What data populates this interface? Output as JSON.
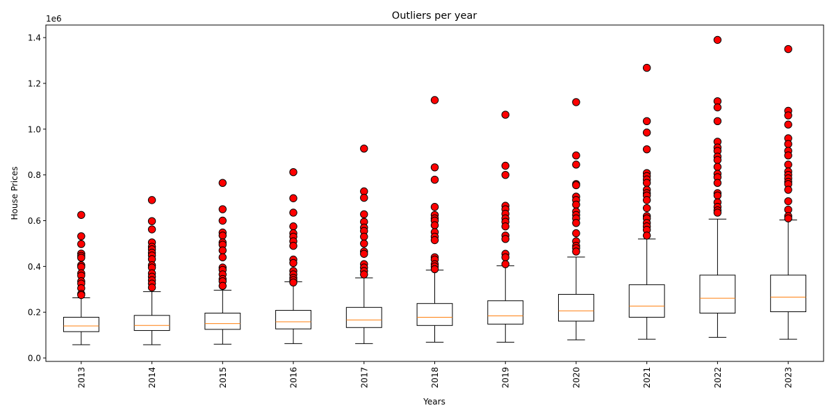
{
  "chart_data": {
    "type": "box",
    "title": "Outliers per year",
    "xlabel": "Years",
    "ylabel": "House Prices",
    "y_offset_label": "1e6",
    "ylim": [
      -0.015,
      1.455
    ],
    "yticks": [
      0.0,
      0.2,
      0.4,
      0.6,
      0.8,
      1.0,
      1.2,
      1.4
    ],
    "ytick_labels": [
      "0.0",
      "0.2",
      "0.4",
      "0.6",
      "0.8",
      "1.0",
      "1.2",
      "1.4"
    ],
    "grid": false,
    "categories": [
      "2013",
      "2014",
      "2015",
      "2016",
      "2017",
      "2018",
      "2019",
      "2020",
      "2021",
      "2022",
      "2023"
    ],
    "boxes": [
      {
        "whislo": 0.058,
        "q1": 0.115,
        "med": 0.14,
        "q3": 0.178,
        "whishi": 0.263,
        "fliers": [
          0.625,
          0.532,
          0.498,
          0.456,
          0.446,
          0.438,
          0.405,
          0.398,
          0.37,
          0.36,
          0.335,
          0.325,
          0.305,
          0.28,
          0.275
        ]
      },
      {
        "whislo": 0.058,
        "q1": 0.12,
        "med": 0.142,
        "q3": 0.186,
        "whishi": 0.29,
        "fliers": [
          0.69,
          0.598,
          0.562,
          0.505,
          0.486,
          0.475,
          0.46,
          0.448,
          0.432,
          0.405,
          0.395,
          0.37,
          0.355,
          0.34,
          0.325,
          0.308
        ]
      },
      {
        "whislo": 0.06,
        "q1": 0.125,
        "med": 0.15,
        "q3": 0.196,
        "whishi": 0.296,
        "fliers": [
          0.765,
          0.65,
          0.6,
          0.548,
          0.535,
          0.505,
          0.495,
          0.47,
          0.44,
          0.395,
          0.385,
          0.365,
          0.345,
          0.335,
          0.315
        ]
      },
      {
        "whislo": 0.063,
        "q1": 0.127,
        "med": 0.158,
        "q3": 0.208,
        "whishi": 0.333,
        "fliers": [
          0.812,
          0.698,
          0.635,
          0.575,
          0.545,
          0.53,
          0.51,
          0.49,
          0.43,
          0.415,
          0.38,
          0.365,
          0.35,
          0.34,
          0.33
        ]
      },
      {
        "whislo": 0.063,
        "q1": 0.133,
        "med": 0.166,
        "q3": 0.221,
        "whishi": 0.35,
        "fliers": [
          0.915,
          0.728,
          0.7,
          0.628,
          0.595,
          0.57,
          0.555,
          0.53,
          0.5,
          0.465,
          0.455,
          0.41,
          0.395,
          0.38,
          0.365
        ]
      },
      {
        "whislo": 0.069,
        "q1": 0.142,
        "med": 0.178,
        "q3": 0.238,
        "whishi": 0.384,
        "fliers": [
          1.127,
          0.833,
          0.779,
          0.66,
          0.625,
          0.61,
          0.6,
          0.58,
          0.55,
          0.53,
          0.515,
          0.44,
          0.43,
          0.41,
          0.4,
          0.388
        ]
      },
      {
        "whislo": 0.069,
        "q1": 0.148,
        "med": 0.184,
        "q3": 0.25,
        "whishi": 0.403,
        "fliers": [
          1.063,
          0.84,
          0.8,
          0.665,
          0.65,
          0.63,
          0.61,
          0.595,
          0.575,
          0.535,
          0.52,
          0.455,
          0.44,
          0.41
        ]
      },
      {
        "whislo": 0.079,
        "q1": 0.161,
        "med": 0.206,
        "q3": 0.278,
        "whishi": 0.441,
        "fliers": [
          1.118,
          0.885,
          0.845,
          0.76,
          0.755,
          0.705,
          0.69,
          0.67,
          0.64,
          0.625,
          0.61,
          0.59,
          0.545,
          0.51,
          0.49,
          0.48,
          0.465
        ]
      },
      {
        "whislo": 0.082,
        "q1": 0.178,
        "med": 0.227,
        "q3": 0.32,
        "whishi": 0.52,
        "fliers": [
          1.268,
          1.035,
          0.985,
          0.912,
          0.808,
          0.795,
          0.78,
          0.765,
          0.735,
          0.72,
          0.71,
          0.69,
          0.655,
          0.62,
          0.61,
          0.59,
          0.575,
          0.56,
          0.535
        ]
      },
      {
        "whislo": 0.09,
        "q1": 0.196,
        "med": 0.261,
        "q3": 0.362,
        "whishi": 0.607,
        "fliers": [
          1.39,
          1.122,
          1.095,
          1.035,
          0.945,
          0.92,
          0.905,
          0.88,
          0.865,
          0.835,
          0.805,
          0.79,
          0.765,
          0.72,
          0.71,
          0.68,
          0.66,
          0.645,
          0.635
        ]
      },
      {
        "whislo": 0.082,
        "q1": 0.202,
        "med": 0.266,
        "q3": 0.362,
        "whishi": 0.603,
        "fliers": [
          1.35,
          1.08,
          1.06,
          1.02,
          0.96,
          0.935,
          0.905,
          0.885,
          0.845,
          0.815,
          0.8,
          0.785,
          0.77,
          0.76,
          0.735,
          0.685,
          0.648,
          0.62,
          0.61
        ]
      }
    ],
    "colors": {
      "box": "#000000",
      "median": "#ff7f0e",
      "flier_fill": "#ff0000",
      "flier_edge": "#000000"
    }
  }
}
